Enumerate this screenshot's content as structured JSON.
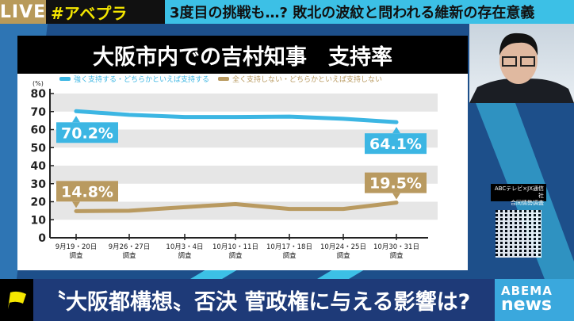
{
  "topbar": {
    "live": "LIVE",
    "hashtag": "#アベプラ",
    "headline": "3度目の挑戦も…? 敗北の波紋と問われる維新の存在意義"
  },
  "panel": {
    "title": "大阪市内での吉村知事　支持率",
    "source_line1": "ABCテレビ×JX通信社",
    "source_line2": "合同情勢調査"
  },
  "bottom": {
    "caption": "〝大阪都構想〟否決 菅政権に与える影響は?",
    "logo_top": "ABEMA",
    "logo_bottom": "news"
  },
  "colors": {
    "blue": "#3cb6e3",
    "brown": "#b99a60",
    "live": "#b89a5a",
    "hashtag": "#f4e600"
  },
  "chart_data": {
    "type": "line",
    "ylabel": "(%)",
    "ylim": [
      0,
      80
    ],
    "yticks": [
      0,
      10,
      20,
      30,
      40,
      50,
      60,
      70,
      80
    ],
    "grid": "alternating gray bands",
    "legend": "top",
    "categories": [
      "9月19・20日\n調査",
      "9月26・27日\n調査",
      "10月3・4日\n調査",
      "10月10・11日\n調査",
      "10月17・18日\n調査",
      "10月24・25日\n調査",
      "10月30・31日\n調査"
    ],
    "series": [
      {
        "name": "強く支持する・どちらかといえば支持する",
        "color": "#3cb6e3",
        "values": [
          70.2,
          68.2,
          67.0,
          67.0,
          67.2,
          66.0,
          64.1
        ],
        "labels": [
          "70.2%",
          null,
          null,
          null,
          null,
          null,
          "64.1%"
        ]
      },
      {
        "name": "全く支持しない・どちらかといえば支持しない",
        "color": "#b99a60",
        "values": [
          14.8,
          15.0,
          17.0,
          18.7,
          16.0,
          16.0,
          19.5
        ],
        "labels": [
          "14.8%",
          null,
          null,
          null,
          null,
          null,
          "19.5%"
        ]
      }
    ]
  }
}
